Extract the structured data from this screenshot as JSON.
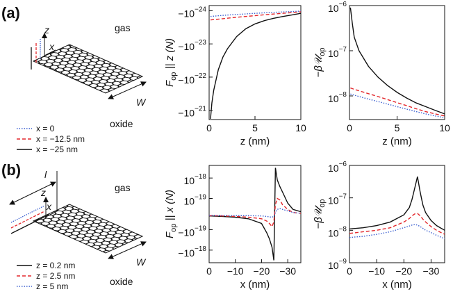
{
  "chart_data": [
    {
      "type": "line",
      "xlabel": "z (nm)",
      "ylabel": {
        "text": "F",
        "sub": "op",
        "rest": " || z  (N)"
      },
      "x": [
        0.15,
        0.3,
        0.5,
        1,
        1.5,
        2,
        3,
        4,
        5,
        6,
        7,
        8,
        9,
        10
      ],
      "xlim": [
        0,
        10
      ],
      "xticks": [
        0,
        5,
        10
      ],
      "yscale": "log",
      "ylim": [
        -1.9e-21,
        -7e-25
      ],
      "yticks": [
        {
          "value": -1e-24,
          "label": "−10",
          "exponent": "−24"
        },
        {
          "value": -1e-23,
          "label": "−10",
          "exponent": "−23"
        },
        {
          "value": -1e-22,
          "label": "−10",
          "exponent": "−22"
        },
        {
          "value": -1e-21,
          "label": "−10",
          "exponent": "−21"
        }
      ],
      "series": [
        {
          "name": "x = 0",
          "color": "#3b5fd0",
          "linestyle": "dotted",
          "values": [
            -1.5e-24,
            -1.48e-24,
            -1.46e-24,
            -1.42e-24,
            -1.38e-24,
            -1.35e-24,
            -1.3e-24,
            -1.25e-24,
            -1.2e-24,
            -1.16e-24,
            -1.12e-24,
            -1.09e-24,
            -1.06e-24,
            -1.03e-24
          ]
        },
        {
          "name": "x = −12.5 nm",
          "color": "#e3262b",
          "linestyle": "dashed",
          "values": [
            -1.9e-24,
            -1.88e-24,
            -1.85e-24,
            -1.8e-24,
            -1.74e-24,
            -1.68e-24,
            -1.58e-24,
            -1.49e-24,
            -1.41e-24,
            -1.33e-24,
            -1.26e-24,
            -1.2e-24,
            -1.14e-24,
            -1.08e-24
          ]
        },
        {
          "name": "x = −25 nm",
          "color": "#111111",
          "linestyle": "solid",
          "values": [
            -1.8e-21,
            -6e-22,
            -2.5e-22,
            -6e-23,
            -2.5e-23,
            -1.4e-23,
            -6e-24,
            -3.5e-24,
            -2.5e-24,
            -2e-24,
            -1.7e-24,
            -1.5e-24,
            -1.35e-24,
            -1.2e-24
          ]
        }
      ]
    },
    {
      "type": "line",
      "xlabel": "z (nm)",
      "ylabel": {
        "text": "−β𝒰",
        "sub": "op",
        "rest": ""
      },
      "x": [
        0.1,
        0.3,
        0.5,
        1,
        2,
        3,
        4,
        5,
        6,
        7,
        8,
        9,
        10
      ],
      "xlim": [
        0,
        10
      ],
      "xticks": [
        0,
        5,
        10
      ],
      "yscale": "log",
      "ylim": [
        3e-09,
        1e-06
      ],
      "yticks": [
        {
          "value": 1e-06,
          "label": "10",
          "exponent": "−6"
        },
        {
          "value": 1e-07,
          "label": "10",
          "exponent": "−7"
        },
        {
          "value": 1e-08,
          "label": "10",
          "exponent": "−8"
        }
      ],
      "series": [
        {
          "color": "#3b5fd0",
          "linestyle": "dotted",
          "values": [
            1.1e-08,
            1.07e-08,
            1.04e-08,
            9.7e-09,
            8.5e-09,
            7.5e-09,
            6.6e-09,
            5.8e-09,
            5.1e-09,
            4.5e-09,
            4e-09,
            3.6e-09,
            3.3e-09
          ]
        },
        {
          "color": "#e3262b",
          "linestyle": "dashed",
          "values": [
            1.5e-08,
            1.45e-08,
            1.4e-08,
            1.3e-08,
            1.12e-08,
            9.7e-09,
            8.3e-09,
            7.1e-09,
            6.1e-09,
            5.2e-09,
            4.5e-09,
            4e-09,
            3.6e-09
          ]
        },
        {
          "color": "#111111",
          "linestyle": "solid",
          "values": [
            9e-07,
            4e-07,
            2e-07,
            1e-07,
            4.5e-08,
            2.6e-08,
            1.7e-08,
            1.2e-08,
            9e-09,
            7e-09,
            5.8e-09,
            4.8e-09,
            4e-09
          ]
        }
      ]
    },
    {
      "type": "line",
      "xlabel": "x (nm)",
      "ylabel": {
        "text": "F",
        "sub": "op",
        "rest": " || x  (N)"
      },
      "x": [
        0,
        -5,
        -10,
        -15,
        -20,
        -22,
        -23,
        -24,
        -24.7,
        -25.3,
        -26,
        -27,
        -28,
        -30,
        -32,
        -35
      ],
      "xlim": [
        0,
        -35
      ],
      "xticks": [
        0,
        {
          "value": -10,
          "label": "−10"
        },
        {
          "value": -20,
          "label": "−20"
        },
        {
          "value": -30,
          "label": "−30"
        }
      ],
      "yscale": "symlog",
      "linthresh": 1.2e-19,
      "ylim": [
        -4.7e-18,
        4.7e-18
      ],
      "yticks": [
        {
          "value": 1e-18,
          "label": "10",
          "exponent": "−18"
        },
        {
          "value": 1e-19,
          "label": "10",
          "exponent": "−19"
        },
        {
          "value": -1e-19,
          "label": "−10",
          "exponent": "−19"
        },
        {
          "value": -1e-18,
          "label": "−10",
          "exponent": "−18"
        }
      ],
      "series": [
        {
          "name": "z = 0.2 nm",
          "color": "#111111",
          "linestyle": "solid",
          "values": [
            -1.2e-20,
            -1.5e-20,
            -2e-20,
            -3e-20,
            -6e-20,
            -1.2e-19,
            -2.5e-19,
            -7e-19,
            -3.5e-18,
            3.5e-18,
            8e-19,
            3.5e-19,
            1.8e-19,
            7e-20,
            3e-20,
            1.5e-20
          ]
        },
        {
          "name": "z = 2.5 nm",
          "color": "#e3262b",
          "linestyle": "dashed",
          "values": [
            -1e-20,
            -1.2e-20,
            -1.5e-20,
            -2e-20,
            -3e-20,
            -4.5e-20,
            -6e-20,
            -8e-20,
            -5e-20,
            6e-20,
            1e-19,
            9e-20,
            6e-20,
            3e-20,
            1e-20,
            5e-21
          ]
        },
        {
          "name": "z = 5 nm",
          "color": "#3b5fd0",
          "linestyle": "dotted",
          "values": [
            -8e-21,
            -9e-21,
            -1e-20,
            -1e-20,
            -1.2e-20,
            -1.5e-20,
            -1.8e-20,
            -2e-20,
            -1.5e-20,
            1e-20,
            3e-20,
            3.5e-20,
            3e-20,
            2e-20,
            1e-20,
            5e-21
          ]
        }
      ]
    },
    {
      "type": "line",
      "xlabel": "x (nm)",
      "ylabel": {
        "text": "−β𝒰",
        "sub": "op",
        "rest": ""
      },
      "x": [
        0,
        -5,
        -10,
        -15,
        -20,
        -22,
        -23,
        -24,
        -25,
        -26,
        -27,
        -28,
        -30,
        -32,
        -35
      ],
      "xlim": [
        0,
        -35
      ],
      "xticks": [
        0,
        {
          "value": -10,
          "label": "−10"
        },
        {
          "value": -20,
          "label": "−20"
        },
        {
          "value": -30,
          "label": "−30"
        }
      ],
      "yscale": "log",
      "ylim": [
        1e-09,
        1e-06
      ],
      "yticks": [
        {
          "value": 1e-06,
          "label": "10",
          "exponent": "−6"
        },
        {
          "value": 1e-07,
          "label": "10",
          "exponent": "−7"
        },
        {
          "value": 1e-08,
          "label": "10",
          "exponent": "−8"
        },
        {
          "value": 1e-09,
          "label": "10",
          "exponent": "−9"
        }
      ],
      "series": [
        {
          "color": "#111111",
          "linestyle": "solid",
          "values": [
            1.1e-08,
            1.2e-08,
            1.4e-08,
            1.8e-08,
            3e-08,
            5e-08,
            9e-08,
            2e-07,
            4.5e-07,
            1.5e-07,
            6e-08,
            3.5e-08,
            2e-08,
            1.4e-08,
            1e-08
          ]
        },
        {
          "color": "#e3262b",
          "linestyle": "dashed",
          "values": [
            8e-09,
            9e-09,
            1e-08,
            1.2e-08,
            1.8e-08,
            2.3e-08,
            2.8e-08,
            3.2e-08,
            3.3e-08,
            2.8e-08,
            2.2e-08,
            1.8e-08,
            1.3e-08,
            1e-08,
            7.5e-09
          ]
        },
        {
          "color": "#3b5fd0",
          "linestyle": "dotted",
          "values": [
            6e-09,
            6.5e-09,
            7.5e-09,
            9e-09,
            1.2e-08,
            1.35e-08,
            1.45e-08,
            1.5e-08,
            1.45e-08,
            1.3e-08,
            1.15e-08,
            1e-08,
            8.5e-09,
            7e-09,
            5.5e-09
          ]
        }
      ]
    }
  ],
  "panels": [
    {
      "label": "(a)",
      "gas": "gas",
      "oxide": "oxide",
      "axis_z": "z",
      "axis_x": "x",
      "width": "W"
    },
    {
      "label": "(b)",
      "gas": "gas",
      "oxide": "oxide",
      "axis_z": "z",
      "axis_x": "x",
      "width": "W",
      "length": "l"
    }
  ]
}
